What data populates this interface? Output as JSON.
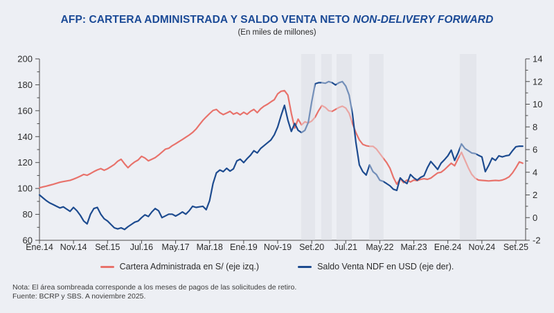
{
  "title": {
    "main": "AFP: CARTERA ADMINISTRADA Y SALDO VENTA NETO ",
    "emphasis": "NON-DELIVERY FORWARD",
    "subtitle": "(En miles de millones)"
  },
  "legend": {
    "items": [
      {
        "label": "Cartera Administrada en S/ (eje izq.)",
        "color": "#e8726b"
      },
      {
        "label": "Saldo Venta NDF en USD (eje der).",
        "color": "#1d4b8f"
      }
    ]
  },
  "notes": {
    "nota": "Nota: El área sombreada corresponde a los meses de pagos de las solicitudes de retiro.",
    "fuente": "Fuente: BCRP y SBS. A noviembre 2025."
  },
  "colors": {
    "background": "#edeff4",
    "band": "#dfe1e7",
    "axis": "#4a4a4a",
    "tick_text": "#2b2b2b",
    "title_blue": "#1b4a96",
    "cartera_red": "#e8726b",
    "ndf_blue": "#1d4b8f"
  },
  "chart_data": {
    "type": "line",
    "title": "AFP: CARTERA ADMINISTRADA Y SALDO VENTA NETO NON-DELIVERY FORWARD",
    "subtitle": "(En miles de millones)",
    "x_unit": "month",
    "x_start": "2014-01",
    "x_end": "2025-11",
    "x_tick_labels": [
      "Ene.14",
      "Nov.14",
      "Set.15",
      "Jul.16",
      "May.17",
      "Mar.18",
      "Ene.19",
      "Nov-19",
      "Set.20",
      "Jul.21",
      "May.22",
      "Mar.23",
      "Ene.24",
      "Nov.24",
      "Set.25"
    ],
    "x_tick_month_indices": [
      0,
      10,
      20,
      30,
      40,
      50,
      60,
      70,
      80,
      90,
      100,
      110,
      120,
      130,
      140
    ],
    "left_axis": {
      "min": 60,
      "max": 200,
      "step": 20,
      "minor_step": 10,
      "tick_labels": [
        "60",
        "80",
        "100",
        "120",
        "140",
        "160",
        "180",
        "200"
      ]
    },
    "right_axis": {
      "min": -2,
      "max": 14,
      "step": 2,
      "minor_step": 1,
      "tick_labels": [
        "-2",
        "0",
        "2",
        "4",
        "6",
        "8",
        "10",
        "12",
        "14"
      ]
    },
    "grid": false,
    "legend_position": "bottom",
    "shaded_bands_month_index": [
      [
        76.9,
        81.0
      ],
      [
        82.8,
        85.9
      ],
      [
        87.3,
        91.8
      ],
      [
        96.9,
        101.1
      ],
      [
        123.5,
        128.4
      ]
    ],
    "series": [
      {
        "name": "Cartera Administrada en S/ (eje izq.)",
        "axis": "left",
        "color": "#e8726b",
        "values": [
          100.5,
          101.2,
          101.8,
          102.5,
          103.2,
          104,
          104.8,
          105.3,
          105.8,
          106.3,
          107.2,
          108.3,
          109.5,
          110.8,
          110.2,
          111.5,
          113,
          114.3,
          115.3,
          114,
          115.2,
          116.8,
          118.5,
          121,
          122.5,
          119,
          116,
          118.5,
          120.5,
          122,
          124.8,
          123.5,
          121.3,
          122.5,
          123.8,
          125.8,
          128,
          130.3,
          131,
          133,
          134.5,
          136.2,
          137.8,
          139.5,
          141.2,
          143.2,
          145.8,
          149.2,
          152.5,
          155.2,
          157.8,
          160.2,
          161,
          158.5,
          157,
          158.2,
          159.5,
          157.3,
          158.5,
          156.8,
          158.8,
          157.2,
          159.5,
          161,
          158.5,
          161.5,
          163.5,
          165,
          166.8,
          168.5,
          173,
          175,
          175.5,
          172,
          158,
          146.5,
          153.5,
          149,
          151.5,
          150.5,
          152,
          155,
          160,
          164,
          162.5,
          160,
          159.5,
          161,
          162.5,
          163.5,
          162,
          158,
          150,
          143,
          137.5,
          134,
          133,
          132.5,
          132.5,
          130.5,
          127,
          123.5,
          120,
          115.5,
          108.5,
          103.3,
          107.5,
          104.5,
          106.5,
          105,
          106.5,
          106,
          107,
          107.5,
          107,
          108,
          110,
          112,
          112.5,
          114.5,
          117,
          119.5,
          117.5,
          123,
          127.9,
          122,
          116,
          111,
          108,
          106.5,
          106.2,
          106,
          105.8,
          106,
          106.2,
          106,
          106.5,
          107.5,
          109,
          112,
          116,
          120.5,
          119.5
        ]
      },
      {
        "name": "Saldo Venta NDF en USD (eje der).",
        "axis": "right",
        "color": "#1d4b8f",
        "values": [
          2,
          1.75,
          1.5,
          1.3,
          1.15,
          1,
          0.85,
          0.95,
          0.75,
          0.55,
          0.9,
          0.6,
          0.2,
          -0.3,
          -0.55,
          0.3,
          0.8,
          0.9,
          0.3,
          -0.1,
          -0.3,
          -0.6,
          -0.9,
          -1,
          -0.9,
          -1.05,
          -0.8,
          -0.6,
          -0.4,
          -0.3,
          0,
          0.25,
          0.1,
          0.5,
          0.8,
          0.6,
          0,
          0.15,
          0.3,
          0.3,
          0.14,
          0.3,
          0.5,
          0.3,
          0.6,
          1,
          0.9,
          0.95,
          1,
          0.7,
          1.5,
          3,
          3.95,
          4.2,
          4.05,
          4.35,
          4.1,
          4.3,
          5,
          5.15,
          4.85,
          5.2,
          5.5,
          5.9,
          5.7,
          6.1,
          6.35,
          6.6,
          6.85,
          7.3,
          8,
          9,
          9.9,
          8.6,
          7.6,
          8.3,
          7.7,
          7.5,
          7.7,
          8.4,
          10.2,
          11.8,
          11.9,
          11.9,
          11.85,
          12,
          11.9,
          11.7,
          11.9,
          12,
          11.6,
          10.8,
          9.1,
          6.6,
          4.65,
          4.05,
          3.75,
          4.65,
          4.05,
          3.8,
          3.3,
          3.2,
          3,
          2.8,
          2.5,
          2.4,
          3.5,
          3.2,
          3,
          3.8,
          3.5,
          3.3,
          3.55,
          3.7,
          4.4,
          4.95,
          4.6,
          4.25,
          4.8,
          5.1,
          5.45,
          5.95,
          5.05,
          5.7,
          6.5,
          6.1,
          5.9,
          5.7,
          5.65,
          5.5,
          5.35,
          4.05,
          4.6,
          5.25,
          5.05,
          5.45,
          5.35,
          5.45,
          5.5,
          5.9,
          6.25,
          6.3,
          6.3
        ]
      }
    ]
  }
}
